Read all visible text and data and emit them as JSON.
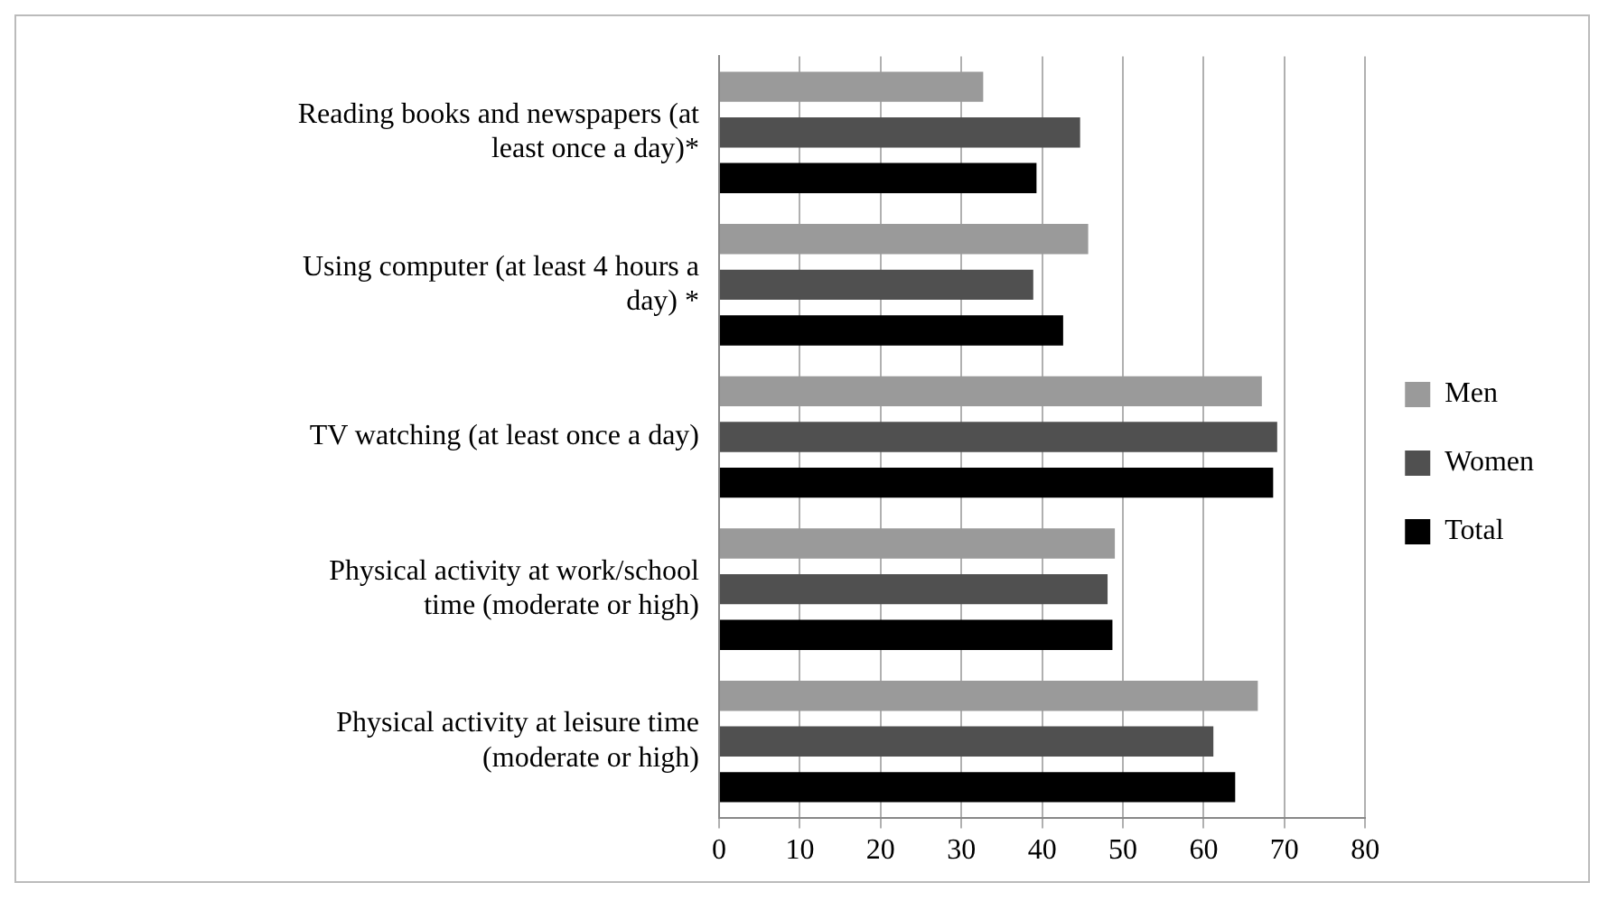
{
  "chart_data": {
    "type": "bar",
    "orientation": "horizontal",
    "categories": [
      "Reading books and newspapers (at least once a day)*",
      "Using computer (at least 4 hours a day) *",
      "TV watching (at least once a day)",
      "Physical activity at work/school time (moderate or high)",
      "Physical activity at leisure time (moderate or high)"
    ],
    "series": [
      {
        "name": "Men",
        "color": "#9a9a9a",
        "values": [
          32.7,
          45.7,
          67.2,
          49.0,
          66.7
        ]
      },
      {
        "name": "Women",
        "color": "#505050",
        "values": [
          44.7,
          38.9,
          69.1,
          48.1,
          61.2
        ]
      },
      {
        "name": "Total",
        "color": "#000000",
        "values": [
          39.3,
          42.6,
          68.6,
          48.7,
          63.9
        ]
      }
    ],
    "xlim": [
      0,
      80
    ],
    "xticks": [
      0,
      10,
      20,
      30,
      40,
      50,
      60,
      70,
      80
    ],
    "grid": "x",
    "legend": "right"
  }
}
